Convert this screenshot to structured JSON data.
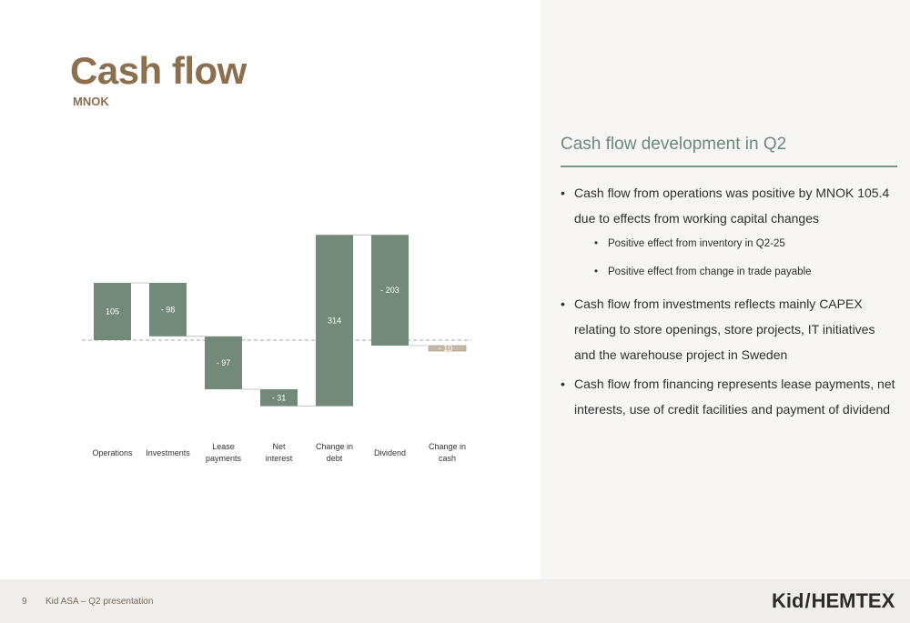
{
  "title": "Cash flow",
  "subtitle": "MNOK",
  "right_panel": {
    "heading": "Cash flow development in Q2",
    "bullets": [
      {
        "text": "Cash flow from operations was positive by MNOK 105.4 due to effects from working capital changes",
        "level": 1
      },
      {
        "text": "Positive effect from inventory in Q2-25",
        "level": 2
      },
      {
        "text": "Positive effect from change in trade payable",
        "level": 2
      },
      {
        "text": "Cash flow from investments reflects mainly CAPEX relating to store openings, store projects, IT initiatives and the warehouse project in Sweden",
        "level": 1
      },
      {
        "text": "Cash flow from financing represents lease payments, net interests, use of credit facilities and payment of dividend",
        "level": 1
      }
    ]
  },
  "footer": {
    "page_number": "9",
    "text": "Kid ASA – Q2 presentation",
    "logo_left": "Kid",
    "logo_slash": "/",
    "logo_right": "HEMTEX"
  },
  "chart_data": {
    "type": "waterfall",
    "categories": [
      "Operations",
      "Investments",
      "Lease payments",
      "Net interest",
      "Change in debt",
      "Dividend",
      "Change in cash"
    ],
    "values": [
      105,
      -98,
      -97,
      -31,
      314,
      -203,
      -10
    ],
    "labels": [
      "105",
      "- 98",
      "- 97",
      "- 31",
      "314",
      "- 203",
      "- 10"
    ],
    "colors": {
      "bar": "#738a7a",
      "total": "#c8b9a6",
      "baseline": "#8a8a8a",
      "connector": "#b5b5b5",
      "label": "#ffffff",
      "axis_label": "#333333"
    }
  }
}
